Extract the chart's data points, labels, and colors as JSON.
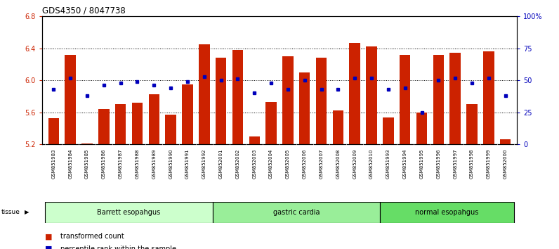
{
  "title": "GDS4350 / 8047738",
  "samples": [
    "GSM851983",
    "GSM851984",
    "GSM851985",
    "GSM851986",
    "GSM851987",
    "GSM851988",
    "GSM851989",
    "GSM851990",
    "GSM851991",
    "GSM851992",
    "GSM852001",
    "GSM852002",
    "GSM852003",
    "GSM852004",
    "GSM852005",
    "GSM852006",
    "GSM852007",
    "GSM852008",
    "GSM852009",
    "GSM852010",
    "GSM851993",
    "GSM851994",
    "GSM851995",
    "GSM851996",
    "GSM851997",
    "GSM851998",
    "GSM851999",
    "GSM852000"
  ],
  "bar_values": [
    5.53,
    6.32,
    5.21,
    5.64,
    5.7,
    5.72,
    5.83,
    5.57,
    5.95,
    6.45,
    6.28,
    6.38,
    5.3,
    5.73,
    6.3,
    6.1,
    6.28,
    5.62,
    6.47,
    6.42,
    5.54,
    6.32,
    5.6,
    6.32,
    6.34,
    5.7,
    6.36,
    5.26
  ],
  "blue_values": [
    43,
    52,
    38,
    46,
    48,
    49,
    46,
    44,
    49,
    53,
    50,
    51,
    40,
    48,
    43,
    50,
    43,
    43,
    52,
    52,
    43,
    44,
    25,
    50,
    52,
    48,
    52,
    38
  ],
  "groups": [
    {
      "label": "Barrett esopahgus",
      "start": 0,
      "end": 9
    },
    {
      "label": "gastric cardia",
      "start": 10,
      "end": 19
    },
    {
      "label": "normal esopahgus",
      "start": 20,
      "end": 27
    }
  ],
  "group_colors": [
    "#ccffcc",
    "#99ee99",
    "#66dd66"
  ],
  "ylim": [
    5.2,
    6.8
  ],
  "y_ticks": [
    5.2,
    5.6,
    6.0,
    6.4,
    6.8
  ],
  "right_ylim": [
    0,
    100
  ],
  "right_ticks": [
    0,
    25,
    50,
    75,
    100
  ],
  "right_tick_labels": [
    "0",
    "25",
    "50",
    "75",
    "100%"
  ],
  "bar_color": "#cc2200",
  "blue_color": "#0000bb",
  "bar_bottom": 5.2,
  "bar_width": 0.65,
  "fig_width": 7.96,
  "fig_height": 3.54,
  "dpi": 100
}
